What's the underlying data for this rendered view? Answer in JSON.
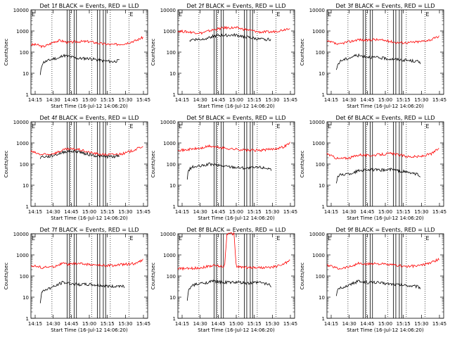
{
  "chart_data": [
    {
      "type": "line",
      "title": "Det 1f  BLACK = Events, RED = LLD",
      "xlabel": "Start Time (16-Jul-12 14:06:20)",
      "ylabel": "Counts/sec",
      "xticks": [
        "14:15",
        "14:30",
        "14:45",
        "15:00",
        "15:15",
        "15:30",
        "15:45"
      ],
      "xlim": [
        0,
        100
      ],
      "ylim_log10": [
        0,
        4
      ],
      "yticks": [
        "1",
        "10",
        "100",
        "1000",
        "10000"
      ],
      "lld": [
        [
          0,
          2.35
        ],
        [
          5,
          2.35
        ],
        [
          10,
          2.25
        ],
        [
          15,
          2.35
        ],
        [
          20,
          2.5
        ],
        [
          25,
          2.55
        ],
        [
          32,
          2.45
        ],
        [
          40,
          2.5
        ],
        [
          50,
          2.5
        ],
        [
          60,
          2.4
        ],
        [
          70,
          2.35
        ],
        [
          80,
          2.4
        ],
        [
          90,
          2.55
        ],
        [
          96,
          2.7
        ]
      ],
      "events": [
        [
          8,
          0.9
        ],
        [
          9,
          1.3
        ],
        [
          10,
          1.5
        ],
        [
          15,
          1.6
        ],
        [
          20,
          1.7
        ],
        [
          24,
          1.7
        ],
        [
          27,
          1.85
        ],
        [
          32,
          1.8
        ],
        [
          40,
          1.7
        ],
        [
          50,
          1.7
        ],
        [
          60,
          1.6
        ],
        [
          70,
          1.55
        ],
        [
          76,
          1.6
        ]
      ]
    },
    {
      "type": "line",
      "title": "Det 2f  BLACK = Events, RED = LLD",
      "xlabel": "Start Time (16-Jul-12 14:06:20)",
      "ylabel": "Counts/sec",
      "xticks": [
        "14:15",
        "14:30",
        "14:45",
        "15:00",
        "15:15",
        "15:30",
        "15:45"
      ],
      "xlim": [
        0,
        100
      ],
      "ylim_log10": [
        0,
        4
      ],
      "yticks": [
        "1",
        "10",
        "100",
        "1000",
        "10000"
      ],
      "lld": [
        [
          0,
          3.0
        ],
        [
          10,
          2.95
        ],
        [
          20,
          2.9
        ],
        [
          30,
          3.05
        ],
        [
          40,
          3.15
        ],
        [
          50,
          3.15
        ],
        [
          60,
          3.05
        ],
        [
          70,
          2.95
        ],
        [
          80,
          2.95
        ],
        [
          90,
          3.05
        ],
        [
          96,
          3.15
        ]
      ],
      "events": [
        [
          10,
          2.5
        ],
        [
          11,
          2.6
        ],
        [
          20,
          2.6
        ],
        [
          30,
          2.75
        ],
        [
          40,
          2.8
        ],
        [
          50,
          2.8
        ],
        [
          60,
          2.7
        ],
        [
          70,
          2.6
        ],
        [
          80,
          2.6
        ]
      ]
    },
    {
      "type": "line",
      "title": "Det 3f  BLACK = Events, RED = LLD",
      "xlabel": "Start Time (16-Jul-12 14:06:20)",
      "ylabel": "Counts/sec",
      "xticks": [
        "14:15",
        "14:30",
        "14:45",
        "15:00",
        "15:15",
        "15:30",
        "15:45"
      ],
      "xlim": [
        0,
        100
      ],
      "ylim_log10": [
        0,
        4
      ],
      "yticks": [
        "1",
        "10",
        "100",
        "1000",
        "10000"
      ],
      "lld": [
        [
          0,
          2.5
        ],
        [
          5,
          2.45
        ],
        [
          10,
          2.35
        ],
        [
          15,
          2.45
        ],
        [
          20,
          2.5
        ],
        [
          27,
          2.6
        ],
        [
          33,
          2.55
        ],
        [
          40,
          2.6
        ],
        [
          50,
          2.55
        ],
        [
          60,
          2.45
        ],
        [
          70,
          2.45
        ],
        [
          80,
          2.5
        ],
        [
          90,
          2.6
        ],
        [
          96,
          2.75
        ]
      ],
      "events": [
        [
          8,
          1.1
        ],
        [
          9,
          1.4
        ],
        [
          12,
          1.6
        ],
        [
          18,
          1.7
        ],
        [
          25,
          1.85
        ],
        [
          32,
          1.8
        ],
        [
          40,
          1.75
        ],
        [
          50,
          1.7
        ],
        [
          60,
          1.65
        ],
        [
          70,
          1.6
        ],
        [
          78,
          1.55
        ],
        [
          80,
          1.5
        ]
      ]
    },
    {
      "type": "line",
      "title": "Det 4f  BLACK = Events, RED = LLD",
      "xlabel": "Start Time (16-Jul-12 14:06:20)",
      "ylabel": "Counts/sec",
      "xticks": [
        "14:15",
        "14:30",
        "14:45",
        "15:00",
        "15:15",
        "15:30",
        "15:45"
      ],
      "xlim": [
        0,
        100
      ],
      "ylim_log10": [
        0,
        4
      ],
      "yticks": [
        "1",
        "10",
        "100",
        "1000",
        "10000"
      ],
      "lld": [
        [
          0,
          2.6
        ],
        [
          8,
          2.45
        ],
        [
          15,
          2.45
        ],
        [
          22,
          2.55
        ],
        [
          30,
          2.7
        ],
        [
          40,
          2.7
        ],
        [
          50,
          2.55
        ],
        [
          60,
          2.45
        ],
        [
          70,
          2.45
        ],
        [
          80,
          2.5
        ],
        [
          90,
          2.7
        ],
        [
          96,
          2.85
        ]
      ],
      "events": [
        [
          8,
          2.3
        ],
        [
          9,
          2.35
        ],
        [
          15,
          2.35
        ],
        [
          22,
          2.45
        ],
        [
          30,
          2.6
        ],
        [
          40,
          2.6
        ],
        [
          50,
          2.45
        ],
        [
          60,
          2.35
        ],
        [
          70,
          2.35
        ],
        [
          76,
          2.4
        ]
      ]
    },
    {
      "type": "line",
      "title": "Det 5f  BLACK = Events, RED = LLD",
      "xlabel": "Start Time (16-Jul-12 14:06:20)",
      "ylabel": "Counts/sec",
      "xticks": [
        "14:15",
        "14:30",
        "14:45",
        "15:00",
        "15:15",
        "15:30",
        "15:45"
      ],
      "xlim": [
        0,
        100
      ],
      "ylim_log10": [
        0,
        4
      ],
      "yticks": [
        "1",
        "10",
        "100",
        "1000",
        "10000"
      ],
      "lld": [
        [
          0,
          2.7
        ],
        [
          5,
          2.65
        ],
        [
          10,
          2.7
        ],
        [
          20,
          2.75
        ],
        [
          27,
          2.85
        ],
        [
          33,
          2.8
        ],
        [
          40,
          2.75
        ],
        [
          50,
          2.7
        ],
        [
          60,
          2.65
        ],
        [
          70,
          2.65
        ],
        [
          80,
          2.7
        ],
        [
          90,
          2.8
        ],
        [
          96,
          3.0
        ]
      ],
      "events": [
        [
          8,
          1.3
        ],
        [
          9,
          1.7
        ],
        [
          12,
          1.85
        ],
        [
          20,
          1.9
        ],
        [
          27,
          2.0
        ],
        [
          33,
          1.95
        ],
        [
          40,
          1.9
        ],
        [
          50,
          1.85
        ],
        [
          60,
          1.8
        ],
        [
          70,
          1.85
        ],
        [
          78,
          1.8
        ],
        [
          80,
          1.75
        ]
      ]
    },
    {
      "type": "line",
      "title": "Det 6f  BLACK = Events, RED = LLD",
      "xlabel": "Start Time (16-Jul-12 14:06:20)",
      "ylabel": "Counts/sec",
      "xticks": [
        "14:15",
        "14:30",
        "14:45",
        "15:00",
        "15:15",
        "15:30",
        "15:45"
      ],
      "xlim": [
        0,
        100
      ],
      "ylim_log10": [
        0,
        4
      ],
      "yticks": [
        "1",
        "10",
        "100",
        "1000",
        "10000"
      ],
      "lld": [
        [
          0,
          2.5
        ],
        [
          5,
          2.35
        ],
        [
          10,
          2.25
        ],
        [
          20,
          2.3
        ],
        [
          28,
          2.45
        ],
        [
          35,
          2.4
        ],
        [
          45,
          2.45
        ],
        [
          55,
          2.5
        ],
        [
          60,
          2.45
        ],
        [
          70,
          2.35
        ],
        [
          80,
          2.35
        ],
        [
          90,
          2.5
        ],
        [
          96,
          2.75
        ]
      ],
      "events": [
        [
          8,
          1.1
        ],
        [
          9,
          1.4
        ],
        [
          12,
          1.5
        ],
        [
          20,
          1.55
        ],
        [
          28,
          1.7
        ],
        [
          35,
          1.75
        ],
        [
          45,
          1.7
        ],
        [
          55,
          1.75
        ],
        [
          60,
          1.7
        ],
        [
          70,
          1.6
        ],
        [
          78,
          1.5
        ],
        [
          80,
          1.45
        ]
      ]
    },
    {
      "type": "line",
      "title": "Det 7f  BLACK = Events, RED = LLD",
      "xlabel": "Start Time (16-Jul-12 14:06:20)",
      "ylabel": "Counts/sec",
      "xticks": [
        "14:15",
        "14:30",
        "14:45",
        "15:00",
        "15:15",
        "15:30",
        "15:45"
      ],
      "xlim": [
        0,
        100
      ],
      "ylim_log10": [
        0,
        4
      ],
      "yticks": [
        "1",
        "10",
        "100",
        "1000",
        "10000"
      ],
      "lld": [
        [
          0,
          2.5
        ],
        [
          5,
          2.45
        ],
        [
          10,
          2.4
        ],
        [
          20,
          2.45
        ],
        [
          27,
          2.6
        ],
        [
          33,
          2.55
        ],
        [
          40,
          2.6
        ],
        [
          50,
          2.55
        ],
        [
          60,
          2.5
        ],
        [
          70,
          2.5
        ],
        [
          80,
          2.55
        ],
        [
          90,
          2.6
        ],
        [
          96,
          2.75
        ]
      ],
      "events": [
        [
          8,
          0.7
        ],
        [
          9,
          1.2
        ],
        [
          12,
          1.35
        ],
        [
          20,
          1.5
        ],
        [
          27,
          1.7
        ],
        [
          33,
          1.65
        ],
        [
          40,
          1.6
        ],
        [
          50,
          1.6
        ],
        [
          60,
          1.55
        ],
        [
          70,
          1.5
        ],
        [
          78,
          1.55
        ],
        [
          80,
          1.5
        ]
      ]
    },
    {
      "type": "line",
      "title": "Det 8f  BLACK = Events, RED = LLD",
      "xlabel": "Start Time (16-Jul-12 14:06:20)",
      "ylabel": "Counts/sec",
      "xticks": [
        "14:15",
        "14:30",
        "14:45",
        "15:00",
        "15:15",
        "15:30",
        "15:45"
      ],
      "xlim": [
        0,
        100
      ],
      "ylim_log10": [
        0,
        4
      ],
      "yticks": [
        "1",
        "10",
        "100",
        "1000",
        "10000"
      ],
      "lld": [
        [
          0,
          2.35
        ],
        [
          10,
          2.35
        ],
        [
          20,
          2.4
        ],
        [
          30,
          2.5
        ],
        [
          40,
          2.45
        ],
        [
          42,
          4.0
        ],
        [
          48,
          4.0
        ],
        [
          50,
          2.45
        ],
        [
          60,
          2.4
        ],
        [
          70,
          2.4
        ],
        [
          80,
          2.4
        ],
        [
          90,
          2.55
        ],
        [
          96,
          2.75
        ]
      ],
      "events": [
        [
          8,
          0.8
        ],
        [
          9,
          1.3
        ],
        [
          12,
          1.55
        ],
        [
          20,
          1.65
        ],
        [
          30,
          1.75
        ],
        [
          40,
          1.7
        ],
        [
          50,
          1.7
        ],
        [
          60,
          1.65
        ],
        [
          70,
          1.7
        ],
        [
          78,
          1.6
        ],
        [
          80,
          1.55
        ]
      ]
    },
    {
      "type": "line",
      "title": "Det 9f  BLACK = Events, RED = LLD",
      "xlabel": "Start Time (16-Jul-12 14:06:20)",
      "ylabel": "Counts/sec",
      "xticks": [
        "14:15",
        "14:30",
        "14:45",
        "15:00",
        "15:15",
        "15:30",
        "15:45"
      ],
      "xlim": [
        0,
        100
      ],
      "ylim_log10": [
        0,
        4
      ],
      "yticks": [
        "1",
        "10",
        "100",
        "1000",
        "10000"
      ],
      "lld": [
        [
          0,
          2.5
        ],
        [
          5,
          2.45
        ],
        [
          10,
          2.35
        ],
        [
          20,
          2.45
        ],
        [
          27,
          2.6
        ],
        [
          33,
          2.55
        ],
        [
          40,
          2.6
        ],
        [
          50,
          2.55
        ],
        [
          60,
          2.5
        ],
        [
          70,
          2.45
        ],
        [
          80,
          2.5
        ],
        [
          90,
          2.65
        ],
        [
          96,
          2.8
        ]
      ],
      "events": [
        [
          8,
          1.0
        ],
        [
          9,
          1.3
        ],
        [
          12,
          1.45
        ],
        [
          20,
          1.6
        ],
        [
          27,
          1.75
        ],
        [
          33,
          1.7
        ],
        [
          40,
          1.7
        ],
        [
          50,
          1.65
        ],
        [
          60,
          1.6
        ],
        [
          70,
          1.55
        ],
        [
          78,
          1.5
        ],
        [
          80,
          1.45
        ]
      ]
    }
  ],
  "colors": {
    "events": "#000000",
    "lld": "#ff0000",
    "axes": "#000000"
  },
  "markers": {
    "dotted_x": [
      18,
      34,
      52,
      68,
      84
    ],
    "solid_x": [
      31,
      33,
      37,
      39,
      57,
      59,
      62,
      64
    ],
    "corner_label_left": "E",
    "corner_label_right": "E"
  }
}
